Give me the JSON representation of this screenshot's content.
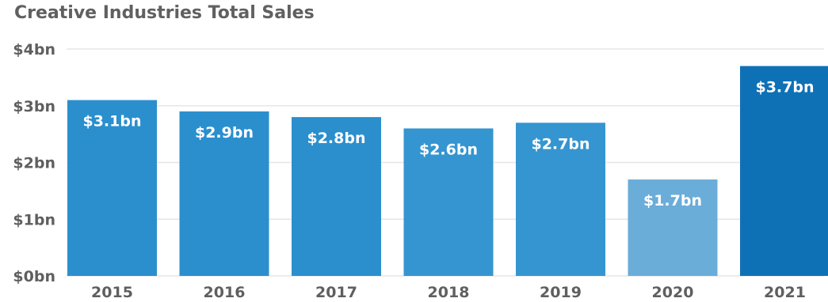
{
  "chart_data": {
    "type": "bar",
    "title": "Creative Industries Total Sales",
    "categories": [
      "2015",
      "2016",
      "2017",
      "2018",
      "2019",
      "2020",
      "2021"
    ],
    "values": [
      3.1,
      2.9,
      2.8,
      2.6,
      2.7,
      1.7,
      3.7
    ],
    "data_labels": [
      "$3.1bn",
      "$2.9bn",
      "$2.8bn",
      "$2.6bn",
      "$2.7bn",
      "$1.7bn",
      "$3.7bn"
    ],
    "y_ticks": [
      0,
      1,
      2,
      3,
      4
    ],
    "y_tick_labels": [
      "$0bn",
      "$1bn",
      "$2bn",
      "$3bn",
      "$4bn"
    ],
    "ylim": [
      0,
      4
    ],
    "grid": true,
    "colors": [
      "#2B8FCE",
      "#2B8FCE",
      "#2B8FCE",
      "#3595D0",
      "#3595D0",
      "#6BADD9",
      "#0E71B6"
    ]
  }
}
